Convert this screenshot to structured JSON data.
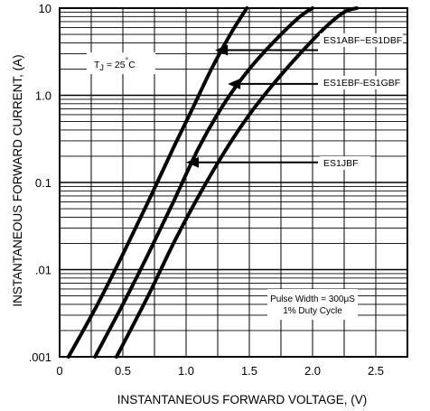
{
  "chart_data": {
    "type": "line",
    "title": "",
    "xlabel": "INSTANTANEOUS FORWARD VOLTAGE, (V)",
    "ylabel": "INSTANTANEOUS FORWARD CURRENT, (A)",
    "x_scale": "linear",
    "y_scale": "log",
    "xlim": [
      0,
      2.75
    ],
    "ylim": [
      0.001,
      10
    ],
    "x_ticks": [
      {
        "value": 0,
        "label": "0"
      },
      {
        "value": 0.5,
        "label": "0.5"
      },
      {
        "value": 1.0,
        "label": "1.0"
      },
      {
        "value": 1.5,
        "label": "1.5"
      },
      {
        "value": 2.0,
        "label": "2.0"
      },
      {
        "value": 2.5,
        "label": "2.5"
      }
    ],
    "y_ticks": [
      {
        "value": 0.001,
        "label": ".001"
      },
      {
        "value": 0.01,
        "label": ".01"
      },
      {
        "value": 0.1,
        "label": "0.1"
      },
      {
        "value": 1,
        "label": "1.0"
      },
      {
        "value": 10,
        "label": "10"
      }
    ],
    "grid": true,
    "series": [
      {
        "name": "ES1ABF~ES1DBF",
        "x": [
          0.07,
          0.3,
          0.5,
          0.7,
          0.9,
          1.05,
          1.2,
          1.35,
          1.48
        ],
        "y": [
          0.001,
          0.004,
          0.015,
          0.06,
          0.25,
          0.7,
          2.0,
          5.0,
          10
        ]
      },
      {
        "name": "ES1EBF-ES1GBF",
        "x": [
          0.28,
          0.5,
          0.7,
          0.9,
          1.1,
          1.3,
          1.5,
          1.7,
          1.9,
          2.0
        ],
        "y": [
          0.001,
          0.004,
          0.015,
          0.06,
          0.25,
          0.8,
          2.0,
          4.2,
          8.0,
          10
        ]
      },
      {
        "name": "ES1JBF",
        "x": [
          0.45,
          0.7,
          0.9,
          1.1,
          1.3,
          1.5,
          1.7,
          1.9,
          2.1,
          2.25,
          2.35
        ],
        "y": [
          0.001,
          0.005,
          0.02,
          0.07,
          0.22,
          0.6,
          1.4,
          3.0,
          6.0,
          9.0,
          10
        ]
      }
    ],
    "annotations": {
      "temperature": "T",
      "temperature_sub": "J",
      "temperature_value": " = 25",
      "temperature_deg": "°",
      "temperature_unit": "C",
      "pulse_line1": "Pulse Width = 300μS",
      "pulse_line2": "1% Duty Cycle"
    },
    "series_label_targets": [
      {
        "series": "ES1ABF~ES1DBF",
        "x": 1.23,
        "y": 3.3
      },
      {
        "series": "ES1EBF-ES1GBF",
        "x": 1.33,
        "y": 1.35
      },
      {
        "series": "ES1JBF",
        "x": 1.0,
        "y": 0.17
      }
    ]
  }
}
